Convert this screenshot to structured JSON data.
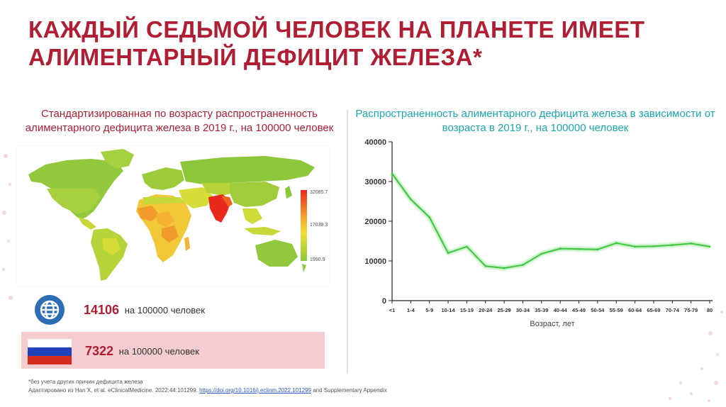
{
  "title": "КАЖДЫЙ СЕДЬМОЙ ЧЕЛОВЕК НА ПЛАНЕТЕ ИМЕЕТ АЛИМЕНТАРНЫЙ ДЕФИЦИТ ЖЕЛЕЗА*",
  "left_panel": {
    "subtitle": "Стандартизированная по возрасту распространенность алиментарного дефицита железа в 2019 г., на 100000 человек",
    "legend": {
      "max": "32085.7",
      "mid": "17038.3",
      "min": "1990.9",
      "colors": [
        "#e8291c",
        "#f39a2c",
        "#f2dc3a",
        "#8cc83a"
      ]
    },
    "stats": [
      {
        "icon": "globe-icon",
        "value": "14106",
        "unit": "на 100000 человек"
      },
      {
        "icon": "russia-flag-icon",
        "value": "7322",
        "unit": "на 100000 человек"
      }
    ]
  },
  "chart_data": {
    "type": "line",
    "title": "Распространенность алиментарного дефицита железа в зависимости от возраста в 2019 г., на 100000 человек",
    "xlabel": "Возраст, лет",
    "ylabel": "",
    "categories": [
      "<1",
      "1-4",
      "5-9",
      "10-14",
      "15-19",
      "20-24",
      "25-29",
      "30-34",
      "35-39",
      "40-44",
      "45-49",
      "50-54",
      "55-59",
      "60-64",
      "65-69",
      "70-74",
      "75-79",
      "80"
    ],
    "series": [
      {
        "values": [
          32000,
          25500,
          21000,
          12000,
          13600,
          8700,
          8200,
          9000,
          11800,
          13100,
          13000,
          12900,
          14500,
          13600,
          13700,
          14000,
          14400,
          13600
        ]
      }
    ],
    "ylim": [
      0,
      40000
    ],
    "yticks": [
      "0",
      "10000",
      "20000",
      "30000",
      "40000"
    ],
    "grid": false,
    "color": "#3cc43c"
  },
  "footnotes": {
    "note": "*без учета других причин дефицита железа",
    "source_prefix": "Адаптировано из Han X, et al. eClinicalMedicine. 2022;44:101299.",
    "doi": "https://doi.org/10.1016/j.eclinm.2022.101299",
    "source_suffix": "and Supplementary Appendix"
  }
}
